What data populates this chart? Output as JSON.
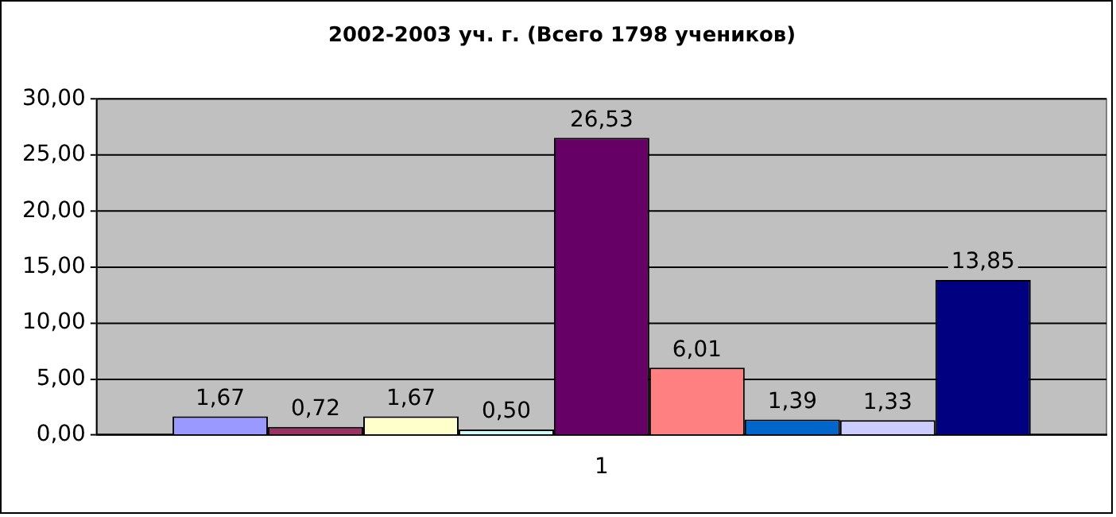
{
  "chart_data": {
    "type": "bar",
    "title": "2002-2003 уч. г. (Всего 1798 учеников)",
    "categories": [
      "1"
    ],
    "series": [
      {
        "color": "#9999ff",
        "values": [
          1.67
        ],
        "value_labels": [
          "1,67"
        ]
      },
      {
        "color": "#993366",
        "values": [
          0.72
        ],
        "value_labels": [
          "0,72"
        ]
      },
      {
        "color": "#ffffcc",
        "values": [
          1.67
        ],
        "value_labels": [
          "1,67"
        ]
      },
      {
        "color": "#ccffff",
        "values": [
          0.5
        ],
        "value_labels": [
          "0,50"
        ]
      },
      {
        "color": "#660066",
        "values": [
          26.53
        ],
        "value_labels": [
          "26,53"
        ]
      },
      {
        "color": "#ff8080",
        "values": [
          6.01
        ],
        "value_labels": [
          "6,01"
        ]
      },
      {
        "color": "#0066cc",
        "values": [
          1.39
        ],
        "value_labels": [
          "1,39"
        ]
      },
      {
        "color": "#ccccff",
        "values": [
          1.33
        ],
        "value_labels": [
          "1,33"
        ]
      },
      {
        "color": "#000080",
        "values": [
          13.85
        ],
        "value_labels": [
          "13,85"
        ]
      }
    ],
    "ylim": [
      0,
      30
    ],
    "yticks": [
      {
        "value": 0,
        "label": "0,00"
      },
      {
        "value": 5,
        "label": "5,00"
      },
      {
        "value": 10,
        "label": "10,00"
      },
      {
        "value": 15,
        "label": "15,00"
      },
      {
        "value": 20,
        "label": "20,00"
      },
      {
        "value": 25,
        "label": "25,00"
      },
      {
        "value": 30,
        "label": "30,00"
      }
    ],
    "grid": "y",
    "legend": false
  }
}
